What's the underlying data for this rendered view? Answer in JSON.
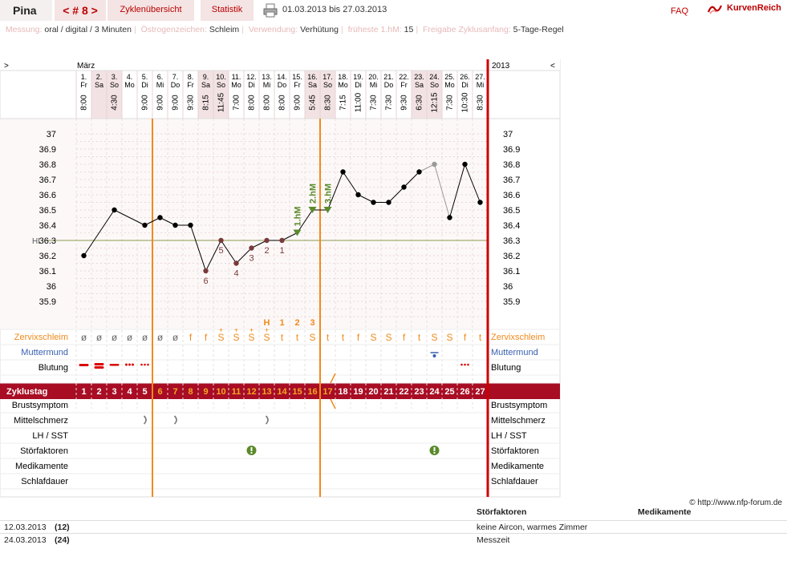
{
  "header": {
    "user": "Pina",
    "cycle": "< # 8 >",
    "nav": [
      "Zyklenübersicht",
      "Statistik"
    ],
    "date_range": "01.03.2013 bis 27.03.2013",
    "faq": "FAQ",
    "logo": "KurvenReich"
  },
  "meta": [
    {
      "label": "Messung:",
      "value": "oral / digital / 3 Minuten"
    },
    {
      "label": "Östrogenzeichen:",
      "value": "Schleim"
    },
    {
      "label": "Verwendung:",
      "value": "Verhütung"
    },
    {
      "label": "früheste 1.hM:",
      "value": "15"
    },
    {
      "label": "Freigabe Zyklusanfang:",
      "value": "5-Tage-Regel"
    }
  ],
  "chart_data": {
    "type": "line",
    "month": "März",
    "year": "2013",
    "nav_left": ">",
    "nav_right": "<",
    "days": [
      1,
      2,
      3,
      4,
      5,
      6,
      7,
      8,
      9,
      10,
      11,
      12,
      13,
      14,
      15,
      16,
      17,
      18,
      19,
      20,
      21,
      22,
      23,
      24,
      25,
      26,
      27
    ],
    "weekdays": [
      "Fr",
      "Sa",
      "So",
      "Mo",
      "Di",
      "Mi",
      "Do",
      "Fr",
      "Sa",
      "So",
      "Mo",
      "Di",
      "Mi",
      "Do",
      "Fr",
      "Sa",
      "So",
      "Mo",
      "Di",
      "Mi",
      "Do",
      "Fr",
      "Sa",
      "So",
      "Mo",
      "Di",
      "Mi"
    ],
    "times": [
      "8:00",
      "",
      "4:30",
      "",
      "9:00",
      "9:00",
      "9:00",
      "9:30",
      "8:15",
      "11:45",
      "7:00",
      "8:00",
      "8:00",
      "8:00",
      "9:00",
      "5:45",
      "8:30",
      "7:15",
      "11:00",
      "7:30",
      "7:30",
      "9:30",
      "6:30",
      "12:15",
      "7:30",
      "10:30",
      "8:30"
    ],
    "temperatures": [
      36.2,
      null,
      36.5,
      null,
      36.4,
      36.45,
      36.4,
      36.4,
      36.1,
      36.3,
      36.15,
      36.25,
      36.3,
      36.3,
      36.35,
      36.5,
      36.5,
      36.75,
      36.6,
      36.55,
      36.55,
      36.65,
      36.75,
      36.8,
      36.45,
      36.8,
      36.55
    ],
    "excluded_days": [
      24
    ],
    "ylim": [
      35.9,
      37.0
    ],
    "y_ticks": [
      "37",
      "36.9",
      "36.8",
      "36.7",
      "36.6",
      "36.5",
      "36.4",
      "36.3",
      "36.2",
      "36.1",
      "36",
      "35.9"
    ],
    "hl_label": "HL",
    "hl_value": 36.3,
    "low_labels": [
      {
        "day": 9,
        "label": "6"
      },
      {
        "day": 10,
        "label": "5"
      },
      {
        "day": 11,
        "label": "4"
      },
      {
        "day": 12,
        "label": "3"
      },
      {
        "day": 13,
        "label": "2"
      },
      {
        "day": 14,
        "label": "1"
      }
    ],
    "high_labels": [
      {
        "day": 15,
        "label": "1.hM"
      },
      {
        "day": 16,
        "label": "2.hM"
      },
      {
        "day": 17,
        "label": "3.hM"
      }
    ],
    "peak_labels": [
      {
        "day": 13,
        "label": "H"
      },
      {
        "day": 14,
        "label": "1"
      },
      {
        "day": 15,
        "label": "2"
      },
      {
        "day": 16,
        "label": "3"
      }
    ],
    "cycle_start_lines": [
      6,
      17
    ],
    "cervix_label": "Zervixschleim",
    "cervix": [
      "ø",
      "ø",
      "ø",
      "ø",
      "ø",
      "ø",
      "ø",
      "f",
      "f",
      "S+",
      "S+",
      "S+",
      "S+",
      "t",
      "t",
      "S",
      "t",
      "t",
      "f",
      "S",
      "S",
      "f",
      "t",
      "S",
      "S",
      "f",
      "t"
    ],
    "mouth_label": "Muttermund",
    "bleeding_label": "Blutung",
    "bleeding": [
      "strong",
      "strong2",
      "medium",
      "light",
      "dots",
      "",
      "",
      "",
      "",
      "",
      "",
      "",
      "",
      "",
      "",
      "",
      "",
      "",
      "",
      "",
      "",
      "",
      "",
      "",
      "",
      "dots",
      ""
    ],
    "cycle_day_label": "Zyklustag",
    "symptom_rows": [
      "Brustsymptom",
      "Mittelschmerz",
      "LH / SST",
      "Störfaktoren",
      "Medikamente",
      "Schlafdauer"
    ],
    "mittelschmerz_days": [
      5,
      7,
      13
    ],
    "stoerfaktor_days": [
      12,
      24
    ]
  },
  "copyright": "© http://www.nfp-forum.de",
  "notes": {
    "col_stoer": "Störfaktoren",
    "col_med": "Medikamente",
    "rows": [
      {
        "date": "12.03.2013",
        "day": "(12)",
        "stoer": "keine Aircon, warmes Zimmer"
      },
      {
        "date": "24.03.2013",
        "day": "(24)",
        "stoer": "Messzeit"
      }
    ]
  }
}
